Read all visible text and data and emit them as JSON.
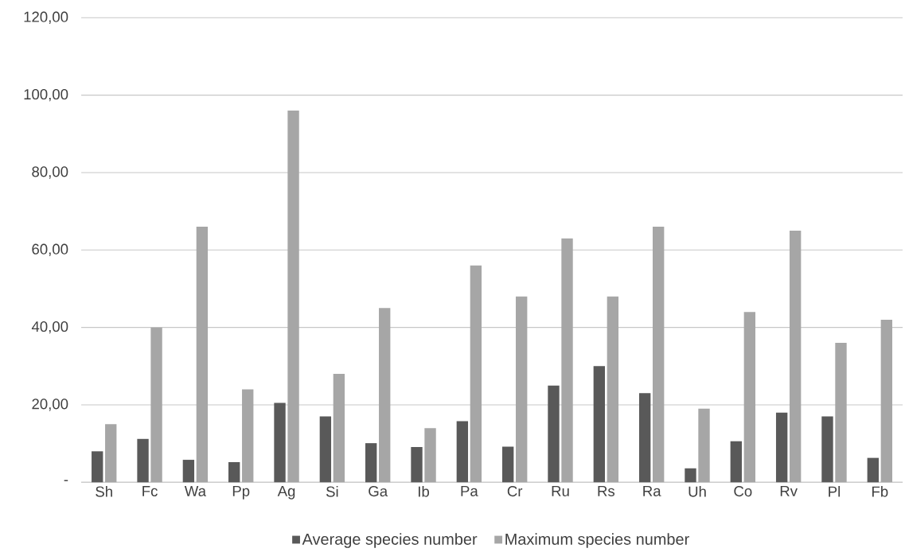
{
  "chart_data": {
    "type": "bar",
    "categories": [
      "Sh",
      "Fc",
      "Wa",
      "Pp",
      "Ag",
      "Si",
      "Ga",
      "Ib",
      "Pa",
      "Cr",
      "Ru",
      "Rs",
      "Ra",
      "Uh",
      "Co",
      "Rv",
      "Pl",
      "Fb"
    ],
    "series": [
      {
        "name": "Average species number",
        "color": "#595959",
        "values": [
          8.0,
          11.2,
          5.8,
          5.2,
          20.5,
          17.0,
          10.1,
          9.1,
          15.8,
          9.2,
          25.0,
          30.0,
          23.0,
          3.6,
          10.6,
          18.0,
          17.0,
          6.3
        ]
      },
      {
        "name": "Maximum species number",
        "color": "#a6a6a6",
        "values": [
          15,
          40,
          66,
          24,
          96,
          28,
          45,
          14,
          56,
          48,
          63,
          48,
          66,
          19,
          44,
          65,
          36,
          42
        ]
      }
    ],
    "ylim": [
      0,
      120
    ],
    "yticks": [
      {
        "value": 0,
        "label": "-"
      },
      {
        "value": 20,
        "label": "20,00"
      },
      {
        "value": 40,
        "label": "40,00"
      },
      {
        "value": 60,
        "label": "60,00"
      },
      {
        "value": 80,
        "label": "80,00"
      },
      {
        "value": 100,
        "label": "100,00"
      },
      {
        "value": 120,
        "label": "120,00"
      }
    ],
    "grid": "y",
    "legend": "bottom"
  }
}
